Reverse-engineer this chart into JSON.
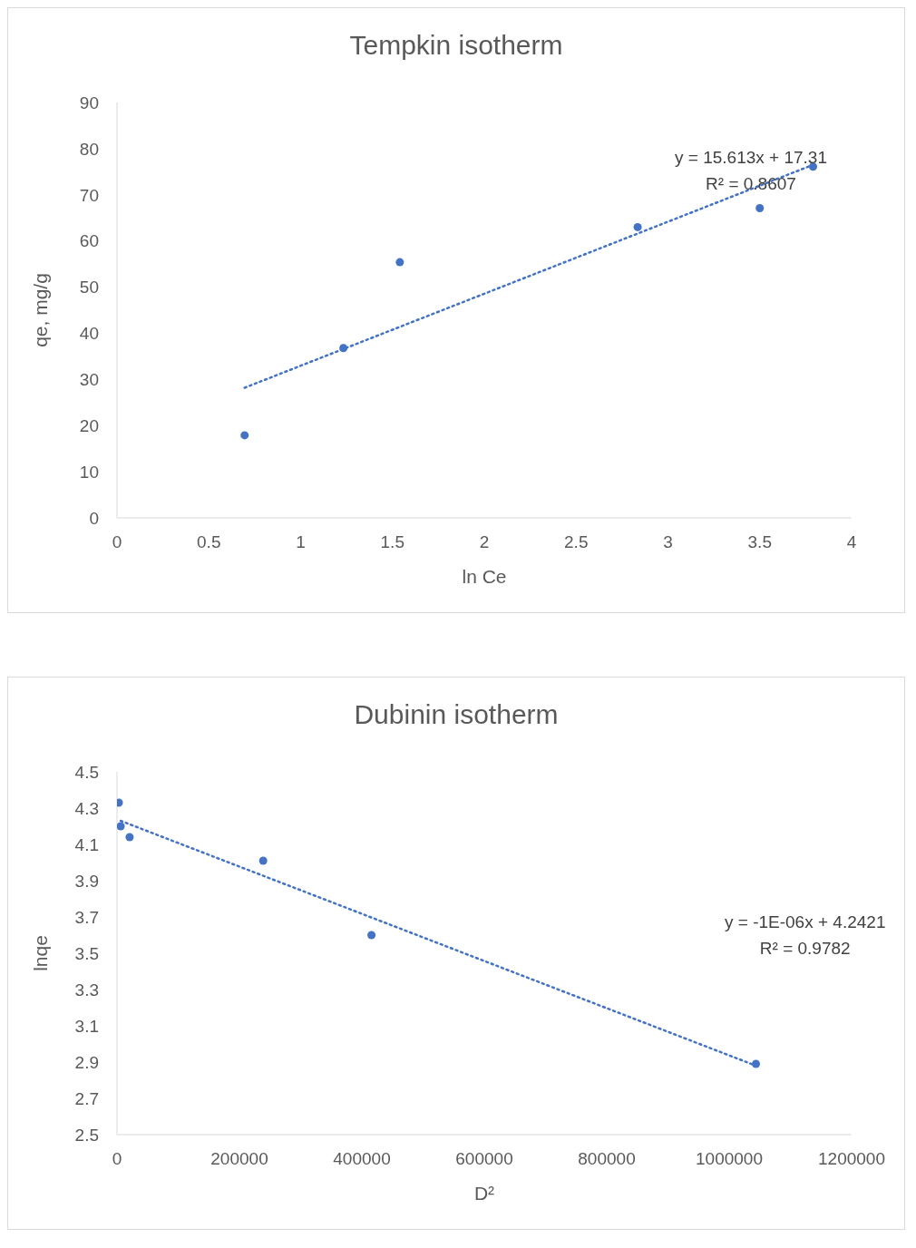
{
  "chart_data": [
    {
      "type": "scatter",
      "title": "Tempkin isotherm",
      "xlabel": "ln Ce",
      "ylabel": "qe, mg/g",
      "xlim": [
        0,
        4
      ],
      "xticks": [
        0,
        0.5,
        1,
        1.5,
        2,
        2.5,
        3,
        3.5,
        4
      ],
      "ylim": [
        0,
        90
      ],
      "yticks": [
        0,
        10,
        20,
        30,
        40,
        50,
        60,
        70,
        80,
        90
      ],
      "grid": false,
      "legend": false,
      "series": [
        {
          "type": "scatter",
          "color": "#4472c4",
          "marker": "circle",
          "x": [
            0.695,
            1.233,
            1.54,
            2.835,
            3.5,
            3.79
          ],
          "values": [
            17.9,
            36.8,
            55.4,
            63.0,
            67.1,
            76.1
          ]
        },
        {
          "type": "line",
          "color": "#4472c4",
          "marker": "none",
          "line_style": "dotted",
          "x": [
            0.695,
            3.79
          ],
          "values": [
            28.2,
            76.5
          ]
        }
      ],
      "annotations": [
        "y = 15.613x + 17.31",
        "R² = 0.8607"
      ]
    },
    {
      "type": "scatter",
      "title": "Dubinin isotherm",
      "xlabel": "D²",
      "ylabel": "lnqe",
      "xlim": [
        0,
        1200000
      ],
      "xticks": [
        0,
        200000,
        400000,
        600000,
        800000,
        1000000,
        1200000
      ],
      "ylim": [
        2.5,
        4.5
      ],
      "yticks": [
        2.5,
        2.7,
        2.9,
        3.1,
        3.3,
        3.5,
        3.7,
        3.9,
        4.1,
        4.3,
        4.5
      ],
      "grid": false,
      "legend": false,
      "series": [
        {
          "type": "scatter",
          "color": "#4472c4",
          "marker": "circle",
          "x": [
            3000,
            6000,
            20600,
            238800,
            415700,
            1043700
          ],
          "values": [
            4.33,
            4.2,
            4.14,
            4.01,
            3.6,
            2.89
          ]
        },
        {
          "type": "line",
          "color": "#4472c4",
          "marker": "none",
          "line_style": "dotted",
          "x": [
            6000,
            1043700
          ],
          "values": [
            4.23,
            2.88
          ]
        }
      ],
      "annotations": [
        "y = -1E-06x + 4.2421",
        "R² = 0.9782"
      ]
    }
  ]
}
